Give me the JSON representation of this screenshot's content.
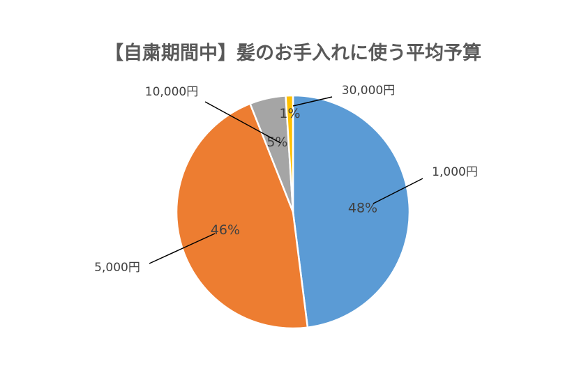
{
  "chart_data": {
    "type": "pie",
    "title": "【自粛期間中】髪のお手入れに使う平均予算",
    "categories": [
      "1,000円",
      "5,000円",
      "10,000円",
      "30,000円"
    ],
    "values": [
      48,
      46,
      5,
      1
    ],
    "value_labels": [
      "48%",
      "46%",
      "5%",
      "1%"
    ],
    "colors": [
      "#5B9BD5",
      "#ED7D31",
      "#A5A5A5",
      "#FFC000"
    ],
    "start_angle_deg": 0,
    "direction": "clockwise",
    "legend": "none"
  }
}
